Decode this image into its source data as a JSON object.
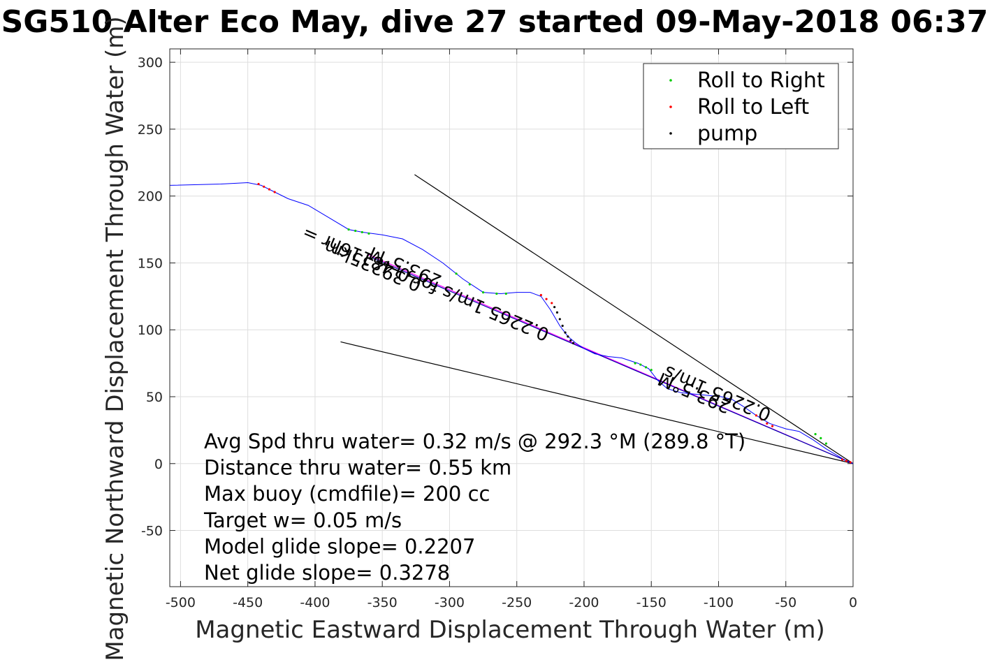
{
  "chart_data": {
    "type": "line",
    "title": "SG510 Alter Eco May, dive 27 started 09-May-2018 06:37",
    "xlabel": "Magnetic Eastward Displacement Through Water (m)",
    "ylabel": "Magnetic Northward Displacement Through Water (m)",
    "xlim": [
      -508,
      0
    ],
    "ylim": [
      -92,
      310
    ],
    "xticks": [
      -500,
      -450,
      -400,
      -350,
      -300,
      -250,
      -200,
      -150,
      -100,
      -50,
      0
    ],
    "yticks": [
      -50,
      0,
      50,
      100,
      150,
      200,
      250,
      300
    ],
    "grid": true,
    "legend_position": "top-right",
    "legend": [
      {
        "label": "Roll to Right",
        "color": "#00cc00"
      },
      {
        "label": "Roll to Left",
        "color": "#ff0000"
      },
      {
        "label": "pump",
        "color": "#000000"
      }
    ],
    "track": {
      "color": "#0000ff",
      "x": [
        -508,
        -470,
        -450,
        -440,
        -430,
        -420,
        -405,
        -390,
        -375,
        -365,
        -350,
        -335,
        -320,
        -305,
        -290,
        -275,
        -262,
        -250,
        -240,
        -232,
        -225,
        -218,
        -212,
        -206,
        -200,
        -192,
        -182,
        -172,
        -160,
        -152,
        -145,
        -138,
        -128,
        -118,
        -108,
        -98,
        -90,
        -82,
        -72,
        -62,
        -50,
        -40,
        -30,
        -20,
        -10,
        -3,
        0
      ],
      "y": [
        208,
        209,
        210,
        208,
        203,
        198,
        193,
        184,
        175,
        173,
        171,
        168,
        160,
        150,
        138,
        128,
        127,
        128,
        128,
        125,
        115,
        103,
        95,
        90,
        86,
        82,
        80,
        79,
        75,
        71,
        62,
        56,
        53,
        52,
        51,
        50,
        48,
        43,
        36,
        30,
        26,
        24,
        18,
        11,
        5,
        1,
        0
      ]
    },
    "roll_right_points": [
      {
        "x": [
          -375,
          -370,
          -365,
          -360
        ],
        "y": [
          175,
          174,
          173,
          172
        ]
      },
      {
        "x": [
          -295,
          -285,
          -275,
          -265,
          -258
        ],
        "y": [
          142,
          134,
          128,
          127,
          127
        ]
      },
      {
        "x": [
          -162,
          -158,
          -154,
          -150
        ],
        "y": [
          75,
          74,
          72,
          70
        ]
      },
      {
        "x": [
          -28,
          -24,
          -20
        ],
        "y": [
          22,
          19,
          15
        ]
      }
    ],
    "roll_left_points": [
      {
        "x": [
          -442,
          -438,
          -434,
          -430
        ],
        "y": [
          209,
          207,
          205,
          203
        ]
      },
      {
        "x": [
          -232,
          -228,
          -224
        ],
        "y": [
          126,
          123,
          120
        ]
      },
      {
        "x": [
          -72,
          -68,
          -64,
          -60
        ],
        "y": [
          36,
          33,
          30,
          28
        ]
      },
      {
        "x": [
          -8,
          -5,
          -2
        ],
        "y": [
          3,
          2,
          1
        ]
      }
    ],
    "pump_points": {
      "x": [
        -222,
        -220,
        -218,
        -216,
        -214,
        -212,
        -210,
        -208
      ],
      "y": [
        117,
        113,
        108,
        103,
        98,
        95,
        92,
        90
      ]
    },
    "reference_lines": [
      {
        "color": "#000000",
        "x": [
          -326,
          0
        ],
        "y": [
          216,
          0
        ]
      },
      {
        "color": "#000000",
        "x": [
          -381,
          0
        ],
        "y": [
          91,
          0
        ]
      },
      {
        "color": "#ff00ff",
        "x": [
          -360,
          0
        ],
        "y": [
          156,
          0
        ]
      },
      {
        "color": "#0000aa",
        "x": [
          -358,
          0
        ],
        "y": [
          154,
          0
        ]
      }
    ],
    "annotations": [
      {
        "text": "293.5°M",
        "x": -305,
        "y": 140,
        "angle": 203
      },
      {
        "text": "0.39235km",
        "x": -320,
        "y": 137,
        "angle": 203
      },
      {
        "text": "0.2265 1m/s for 0.48116hr =",
        "x": -225,
        "y": 100,
        "angle": 203
      },
      {
        "text": "293.5°M",
        "x": -90,
        "y": 46,
        "angle": 203
      },
      {
        "text": "0.2265 1m/s",
        "x": -60,
        "y": 40,
        "angle": 203
      }
    ],
    "stats": [
      "Avg Spd thru water=  0.32 m/s @ 292.3 °M (289.8 °T)",
      "Distance thru water=  0.55 km",
      "Max buoy (cmdfile)= 200 cc",
      "Target w= 0.05 m/s",
      "Model glide slope= 0.2207",
      "Net glide slope= 0.3278"
    ]
  }
}
